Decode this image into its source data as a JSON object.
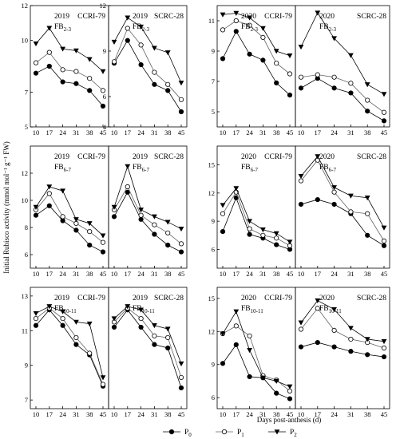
{
  "figure": {
    "ylabel": "Initial Rubisco activity (mmol mol⁻¹ g⁻¹ FW)",
    "xlabel": "Days post-anthesis (d)",
    "legend": [
      "P0",
      "P1",
      "P2"
    ],
    "x_ticks": [
      10,
      17,
      24,
      31,
      38,
      45
    ]
  },
  "chart_data": [
    {
      "type": "line",
      "year": "2019",
      "cultivar": "CCRI-79",
      "position": "FB2-3",
      "ylim": [
        5,
        12
      ],
      "yticks": [
        5,
        7,
        10,
        12
      ],
      "x": [
        10,
        17,
        24,
        31,
        38,
        45
      ],
      "series": [
        {
          "name": "P0",
          "values": [
            8.1,
            8.5,
            7.6,
            7.5,
            7.1,
            6.2
          ]
        },
        {
          "name": "P1",
          "values": [
            8.7,
            9.3,
            8.3,
            8.2,
            7.8,
            7.1
          ]
        },
        {
          "name": "P2",
          "values": [
            9.8,
            10.7,
            9.5,
            9.4,
            8.9,
            8.2
          ]
        }
      ]
    },
    {
      "type": "line",
      "year": "2019",
      "cultivar": "SCRC-28",
      "position": "FB2-3",
      "ylim": [
        4,
        12
      ],
      "yticks": [
        4,
        6,
        9,
        12
      ],
      "x": [
        10,
        17,
        24,
        31,
        38,
        45
      ],
      "series": [
        {
          "name": "P0",
          "values": [
            8.2,
            9.7,
            8.1,
            6.8,
            6.4,
            5.0
          ]
        },
        {
          "name": "P1",
          "values": [
            8.3,
            10.5,
            9.4,
            7.6,
            6.8,
            5.8
          ]
        },
        {
          "name": "P2",
          "values": [
            9.6,
            11.2,
            10.6,
            9.2,
            8.9,
            6.9
          ]
        }
      ]
    },
    {
      "type": "line",
      "year": "2020",
      "cultivar": "CCRI-79",
      "position": "FB2-3",
      "ylim": [
        4,
        12
      ],
      "yticks": [
        5,
        7,
        9,
        11
      ],
      "x": [
        10,
        17,
        24,
        31,
        38,
        45
      ],
      "series": [
        {
          "name": "P0",
          "values": [
            8.5,
            10.3,
            8.8,
            8.4,
            6.9,
            6.1
          ]
        },
        {
          "name": "P1",
          "values": [
            10.4,
            11.0,
            10.7,
            9.9,
            8.2,
            7.5
          ]
        },
        {
          "name": "P2",
          "values": [
            11.4,
            11.5,
            11.2,
            10.5,
            9.0,
            8.7
          ]
        }
      ]
    },
    {
      "type": "line",
      "year": "2020",
      "cultivar": "SCRC-28",
      "position": "FB2-3",
      "ylim": [
        4,
        14
      ],
      "yticks": [],
      "x": [
        10,
        17,
        24,
        31,
        38,
        45
      ],
      "series": [
        {
          "name": "P0",
          "values": [
            7.2,
            8.0,
            7.2,
            6.8,
            5.3,
            4.5
          ]
        },
        {
          "name": "P1",
          "values": [
            8.1,
            8.3,
            8.1,
            7.6,
            6.2,
            5.2
          ]
        },
        {
          "name": "P2",
          "values": [
            10.6,
            13.4,
            11.3,
            9.9,
            7.5,
            6.7
          ]
        }
      ]
    },
    {
      "type": "line",
      "year": "2019",
      "cultivar": "CCRI-79",
      "position": "FB6-7",
      "ylim": [
        5,
        14
      ],
      "yticks": [
        6,
        8,
        10,
        12
      ],
      "x": [
        10,
        17,
        24,
        31,
        38,
        45
      ],
      "series": [
        {
          "name": "P0",
          "values": [
            8.9,
            9.6,
            8.5,
            7.8,
            6.7,
            6.2
          ]
        },
        {
          "name": "P1",
          "values": [
            9.3,
            10.5,
            8.8,
            8.3,
            7.7,
            6.9
          ]
        },
        {
          "name": "P2",
          "values": [
            9.5,
            11.0,
            10.7,
            8.6,
            8.3,
            7.4
          ]
        }
      ]
    },
    {
      "type": "line",
      "year": "2019",
      "cultivar": "SCRC-28",
      "position": "FB6-7",
      "ylim": [
        5,
        14
      ],
      "yticks": [],
      "x": [
        10,
        17,
        24,
        31,
        38,
        45
      ],
      "series": [
        {
          "name": "P0",
          "values": [
            8.8,
            10.6,
            8.6,
            7.5,
            6.7,
            6.2
          ]
        },
        {
          "name": "P1",
          "values": [
            9.3,
            11.0,
            8.9,
            8.2,
            7.6,
            6.8
          ]
        },
        {
          "name": "P2",
          "values": [
            9.5,
            12.5,
            9.3,
            8.8,
            8.4,
            7.9
          ]
        }
      ]
    },
    {
      "type": "line",
      "year": "2020",
      "cultivar": "CCRI-79",
      "position": "FB6-7",
      "ylim": [
        4,
        17
      ],
      "yticks": [
        6,
        9,
        12,
        15
      ],
      "x": [
        10,
        17,
        24,
        31,
        38,
        45
      ],
      "series": [
        {
          "name": "P0",
          "values": [
            7.9,
            11.5,
            7.6,
            7.2,
            6.5,
            6.0
          ]
        },
        {
          "name": "P1",
          "values": [
            9.8,
            12.1,
            8.2,
            7.5,
            7.2,
            6.4
          ]
        },
        {
          "name": "P2",
          "values": [
            10.7,
            12.5,
            9.0,
            8.1,
            7.7,
            6.8
          ]
        }
      ]
    },
    {
      "type": "line",
      "year": "2020",
      "cultivar": "SCRC-28",
      "position": "FB6-7",
      "ylim": [
        4,
        17
      ],
      "yticks": [],
      "x": [
        10,
        17,
        24,
        31,
        38,
        45
      ],
      "series": [
        {
          "name": "P0",
          "values": [
            10.8,
            11.3,
            10.8,
            9.8,
            7.5,
            6.4
          ]
        },
        {
          "name": "P1",
          "values": [
            13.3,
            15.5,
            12.1,
            10.0,
            9.8,
            6.9
          ]
        },
        {
          "name": "P2",
          "values": [
            13.8,
            15.9,
            12.6,
            11.7,
            11.5,
            8.3
          ]
        }
      ]
    },
    {
      "type": "line",
      "year": "2019",
      "cultivar": "CCRI-79",
      "position": "FB10-11",
      "ylim": [
        6.5,
        13.5
      ],
      "yticks": [
        7,
        9,
        11,
        13
      ],
      "x": [
        10,
        17,
        24,
        31,
        38,
        45
      ],
      "series": [
        {
          "name": "P0",
          "values": [
            11.3,
            12.2,
            11.3,
            10.2,
            9.6,
            7.8
          ]
        },
        {
          "name": "P1",
          "values": [
            11.7,
            12.3,
            11.7,
            10.6,
            9.7,
            7.9
          ]
        },
        {
          "name": "P2",
          "values": [
            12.0,
            12.4,
            12.1,
            11.5,
            11.4,
            8.3
          ]
        }
      ]
    },
    {
      "type": "line",
      "year": "2019",
      "cultivar": "SCRC-28",
      "position": "FB10-11",
      "ylim": [
        6.5,
        13.5
      ],
      "yticks": [],
      "x": [
        10,
        17,
        24,
        31,
        38,
        45
      ],
      "series": [
        {
          "name": "P0",
          "values": [
            11.2,
            12.2,
            11.2,
            10.2,
            10.0,
            7.7
          ]
        },
        {
          "name": "P1",
          "values": [
            11.5,
            12.3,
            11.7,
            10.7,
            10.6,
            8.3
          ]
        },
        {
          "name": "P2",
          "values": [
            11.7,
            12.4,
            12.2,
            11.3,
            11.1,
            9.1
          ]
        }
      ]
    },
    {
      "type": "line",
      "year": "2020",
      "cultivar": "CCRI-79",
      "position": "FB10-11",
      "ylim": [
        5,
        16
      ],
      "yticks": [
        6,
        9,
        12,
        15
      ],
      "x": [
        10,
        17,
        24,
        31,
        38,
        45
      ],
      "series": [
        {
          "name": "P0",
          "values": [
            9.1,
            10.8,
            7.9,
            7.8,
            6.4,
            5.9
          ]
        },
        {
          "name": "P1",
          "values": [
            11.8,
            12.5,
            11.6,
            8.0,
            7.6,
            6.6
          ]
        },
        {
          "name": "P2",
          "values": [
            11.8,
            13.8,
            10.3,
            7.8,
            7.5,
            7.0
          ]
        }
      ]
    },
    {
      "type": "line",
      "year": "2020",
      "cultivar": "SCRC-28",
      "position": "FB10-11",
      "ylim": [
        5,
        16
      ],
      "yticks": [],
      "x": [
        10,
        17,
        24,
        31,
        38,
        45
      ],
      "series": [
        {
          "name": "P0",
          "values": [
            10.6,
            11.0,
            10.6,
            10.2,
            9.9,
            9.7
          ]
        },
        {
          "name": "P1",
          "values": [
            12.2,
            14.1,
            12.1,
            11.3,
            11.0,
            10.5
          ]
        },
        {
          "name": "P2",
          "values": [
            12.8,
            14.8,
            14.0,
            12.3,
            11.3,
            11.1
          ]
        }
      ]
    }
  ]
}
